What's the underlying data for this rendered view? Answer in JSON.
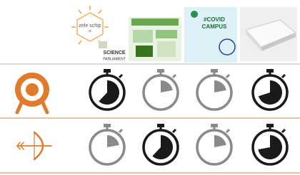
{
  "thumbnails": {
    "science_parliament": {
      "badge": "zele schip",
      "line1": "SCIENCE",
      "line2": "PARLIAMENT"
    },
    "covid_campus": {
      "line1": "#COVID",
      "line2": "CAMPUS"
    }
  }
}
